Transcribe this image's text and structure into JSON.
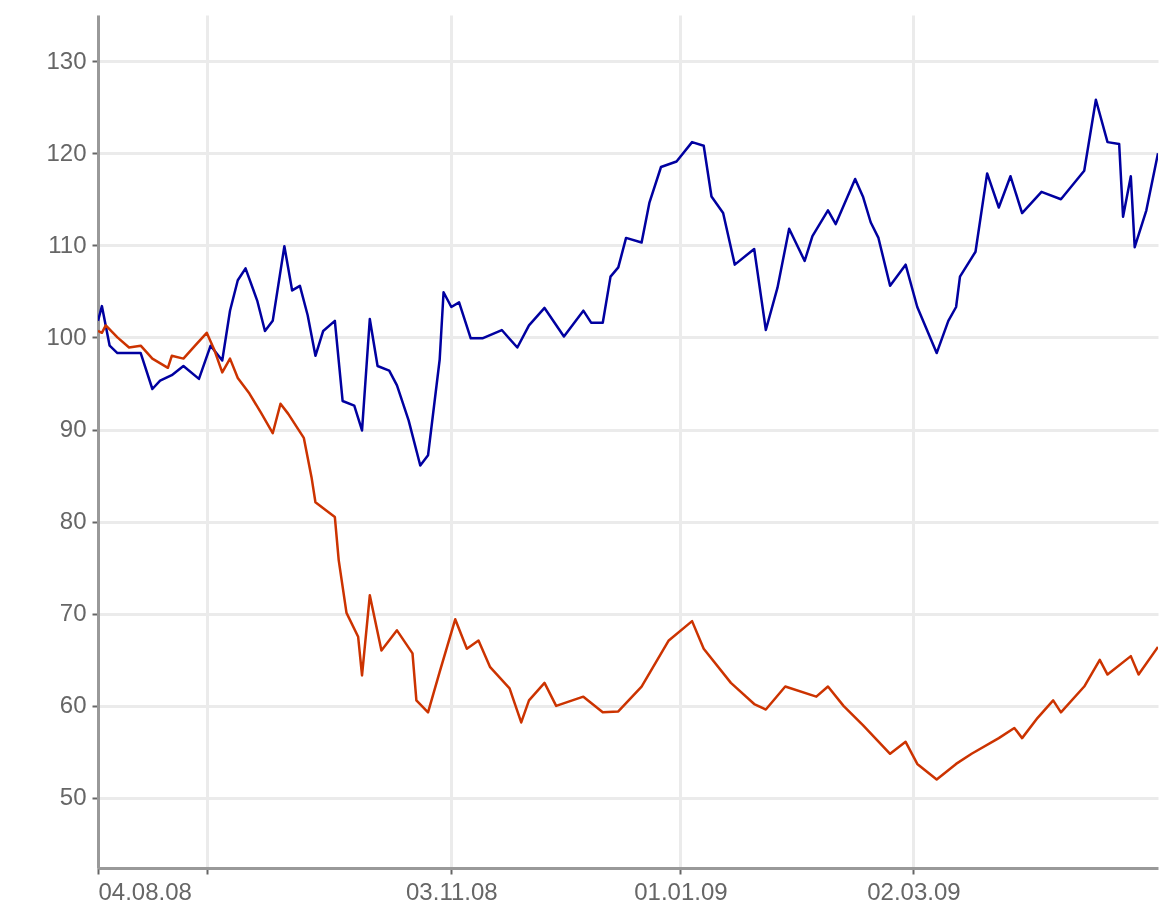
{
  "chart_data": {
    "type": "line",
    "xlim": [
      "2008-08-04",
      "2009-05-04"
    ],
    "xticks": [
      {
        "value": "2008-08-04",
        "label": "04.08.08"
      },
      {
        "value": "2008-09-01",
        "label": null
      },
      {
        "value": "2008-11-03",
        "label": "03.11.08"
      },
      {
        "value": "2009-01-01",
        "label": "01.01.09"
      },
      {
        "value": "2009-03-02",
        "label": "02.03.09"
      }
    ],
    "ylim": [
      42.4,
      135
    ],
    "yticks": [
      50,
      60,
      70,
      80,
      90,
      100,
      110,
      120,
      130
    ],
    "grid": true,
    "series": [
      {
        "color": "#0000a0",
        "x": [
          "2008-08-04",
          "2008-08-05",
          "2008-08-07",
          "2008-08-09",
          "2008-08-15",
          "2008-08-18",
          "2008-08-20",
          "2008-08-23",
          "2008-08-26",
          "2008-08-30",
          "2008-09-02",
          "2008-09-05",
          "2008-09-07",
          "2008-09-09",
          "2008-09-11",
          "2008-09-14",
          "2008-09-16",
          "2008-09-18",
          "2008-09-21",
          "2008-09-23",
          "2008-09-25",
          "2008-09-27",
          "2008-09-29",
          "2008-10-01",
          "2008-10-04",
          "2008-10-06",
          "2008-10-09",
          "2008-10-11",
          "2008-10-13",
          "2008-10-15",
          "2008-10-18",
          "2008-10-20",
          "2008-10-23",
          "2008-10-26",
          "2008-10-28",
          "2008-10-31",
          "2008-11-01",
          "2008-11-03",
          "2008-11-05",
          "2008-11-08",
          "2008-11-11",
          "2008-11-16",
          "2008-11-20",
          "2008-11-23",
          "2008-11-27",
          "2008-12-02",
          "2008-12-07",
          "2008-12-09",
          "2008-12-12",
          "2008-12-14",
          "2008-12-16",
          "2008-12-18",
          "2008-12-22",
          "2008-12-24",
          "2008-12-27",
          "2008-12-31",
          "2009-01-04",
          "2009-01-07",
          "2009-01-09",
          "2009-01-12",
          "2009-01-15",
          "2009-01-20",
          "2009-01-23",
          "2009-01-26",
          "2009-01-29",
          "2009-02-02",
          "2009-02-04",
          "2009-02-08",
          "2009-02-10",
          "2009-02-15",
          "2009-02-17",
          "2009-02-19",
          "2009-02-21",
          "2009-02-24",
          "2009-02-28",
          "2009-03-03",
          "2009-03-08",
          "2009-03-11",
          "2009-03-13",
          "2009-03-14",
          "2009-03-18",
          "2009-03-21",
          "2009-03-24",
          "2009-03-27",
          "2009-03-30",
          "2009-04-04",
          "2009-04-09",
          "2009-04-15",
          "2009-04-18",
          "2009-04-21",
          "2009-04-24",
          "2009-04-25",
          "2009-04-27",
          "2009-04-28",
          "2009-05-01",
          "2009-05-04"
        ],
        "values": [
          101.8,
          103.4,
          99.1,
          98.3,
          98.3,
          94.4,
          95.3,
          95.9,
          96.9,
          95.5,
          99.1,
          97.5,
          102.9,
          106.2,
          107.5,
          104.0,
          100.7,
          101.8,
          109.9,
          105.1,
          105.6,
          102.4,
          98.0,
          100.7,
          101.8,
          93.1,
          92.6,
          89.9,
          102.0,
          96.9,
          96.4,
          94.8,
          91.0,
          86.1,
          87.2,
          97.6,
          104.9,
          103.3,
          103.8,
          99.9,
          99.9,
          100.8,
          98.9,
          101.3,
          103.2,
          100.1,
          102.9,
          101.6,
          101.6,
          106.6,
          107.6,
          110.8,
          110.3,
          114.6,
          118.5,
          119.1,
          121.2,
          120.8,
          115.3,
          113.5,
          107.9,
          109.6,
          100.8,
          105.4,
          111.8,
          108.3,
          111.0,
          113.8,
          112.3,
          117.2,
          115.3,
          112.5,
          110.8,
          105.6,
          107.9,
          103.3,
          98.3,
          101.8,
          103.3,
          106.6,
          109.3,
          117.8,
          114.1,
          117.5,
          113.5,
          115.8,
          115.0,
          118.1,
          125.8,
          121.2,
          121.0,
          113.1,
          117.5,
          109.8,
          113.8,
          120.0
        ]
      },
      {
        "color": "#cc3300",
        "x": [
          "2008-08-04",
          "2008-08-05",
          "2008-08-06",
          "2008-08-09",
          "2008-08-12",
          "2008-08-15",
          "2008-08-18",
          "2008-08-22",
          "2008-08-23",
          "2008-08-26",
          "2008-08-29",
          "2008-09-01",
          "2008-09-03",
          "2008-09-05",
          "2008-09-07",
          "2008-09-09",
          "2008-09-12",
          "2008-09-15",
          "2008-09-18",
          "2008-09-20",
          "2008-09-22",
          "2008-09-26",
          "2008-09-28",
          "2008-09-29",
          "2008-10-04",
          "2008-10-05",
          "2008-10-07",
          "2008-10-10",
          "2008-10-11",
          "2008-10-13",
          "2008-10-16",
          "2008-10-20",
          "2008-10-24",
          "2008-10-25",
          "2008-10-28",
          "2008-10-31",
          "2008-11-04",
          "2008-11-07",
          "2008-11-10",
          "2008-11-13",
          "2008-11-18",
          "2008-11-21",
          "2008-11-23",
          "2008-11-27",
          "2008-11-30",
          "2008-12-07",
          "2008-12-12",
          "2008-12-16",
          "2008-12-22",
          "2008-12-29",
          "2009-01-04",
          "2009-01-07",
          "2009-01-14",
          "2009-01-20",
          "2009-01-23",
          "2009-01-28",
          "2009-02-05",
          "2009-02-08",
          "2009-02-12",
          "2009-02-17",
          "2009-02-24",
          "2009-02-28",
          "2009-03-03",
          "2009-03-08",
          "2009-03-13",
          "2009-03-17",
          "2009-03-24",
          "2009-03-28",
          "2009-03-30",
          "2009-04-03",
          "2009-04-07",
          "2009-04-09",
          "2009-04-15",
          "2009-04-19",
          "2009-04-21",
          "2009-04-27",
          "2009-04-29",
          "2009-05-04"
        ],
        "values": [
          100.7,
          100.5,
          101.3,
          100.0,
          98.9,
          99.1,
          97.7,
          96.7,
          98.0,
          97.7,
          99.1,
          100.5,
          98.6,
          96.2,
          97.7,
          95.6,
          93.9,
          91.8,
          89.6,
          92.8,
          91.7,
          89.1,
          84.8,
          82.1,
          80.5,
          75.8,
          70.1,
          67.5,
          63.3,
          72.0,
          66.0,
          68.2,
          65.7,
          60.6,
          59.3,
          63.7,
          69.4,
          66.2,
          67.1,
          64.2,
          61.9,
          58.2,
          60.6,
          62.5,
          60.0,
          61.0,
          59.3,
          59.4,
          62.1,
          67.1,
          69.2,
          66.2,
          62.5,
          60.2,
          59.6,
          62.1,
          61.0,
          62.1,
          60.0,
          57.9,
          54.8,
          56.1,
          53.7,
          52.0,
          53.7,
          54.8,
          56.5,
          57.6,
          56.5,
          58.7,
          60.6,
          59.3,
          62.1,
          65.0,
          63.4,
          65.4,
          63.4,
          66.4
        ]
      }
    ]
  }
}
